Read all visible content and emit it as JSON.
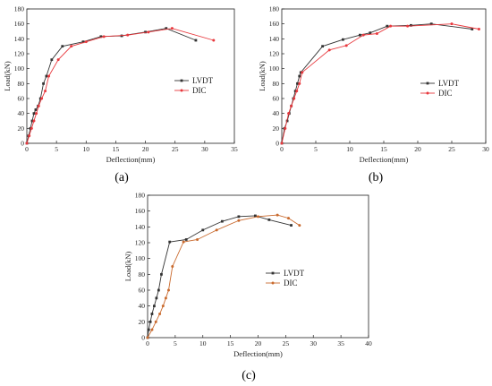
{
  "chart_data": [
    {
      "type": "line",
      "panel_label": "(a)",
      "xlabel": "Deflection(mm)",
      "ylabel": "Load(kN)",
      "xlim": [
        0,
        35
      ],
      "ylim": [
        0,
        180
      ],
      "xticks": [
        0,
        5,
        10,
        15,
        20,
        25,
        30,
        35
      ],
      "yticks": [
        0,
        20,
        40,
        60,
        80,
        100,
        120,
        140,
        160,
        180
      ],
      "legend_position": "right",
      "series": [
        {
          "name": "LVDT",
          "color": "#333333",
          "marker": "square",
          "x": [
            0,
            0.3,
            0.6,
            0.9,
            1.2,
            1.5,
            1.9,
            2.3,
            2.8,
            3.3,
            4.2,
            6.0,
            9.5,
            12.5,
            16.0,
            20.0,
            23.5,
            28.5
          ],
          "y": [
            0,
            10,
            20,
            30,
            40,
            45,
            50,
            60,
            80,
            90,
            112,
            130,
            136,
            143,
            144,
            149,
            154,
            138
          ]
        },
        {
          "name": "DIC",
          "color": "#e8383d",
          "marker": "circle",
          "x": [
            0,
            0.4,
            0.8,
            1.2,
            1.6,
            2.0,
            2.5,
            3.1,
            3.7,
            5.3,
            7.5,
            10.0,
            13.0,
            17.0,
            20.5,
            24.5,
            31.5
          ],
          "y": [
            0,
            10,
            20,
            30,
            40,
            50,
            60,
            70,
            90,
            112,
            130,
            136,
            143,
            145,
            149,
            154,
            138
          ]
        }
      ]
    },
    {
      "type": "line",
      "panel_label": "(b)",
      "xlabel": "Deflection(mm)",
      "ylabel": "Load(kN)",
      "xlim": [
        0,
        30
      ],
      "ylim": [
        0,
        180
      ],
      "xticks": [
        0,
        5,
        10,
        15,
        20,
        25,
        30
      ],
      "yticks": [
        0,
        20,
        40,
        60,
        80,
        100,
        120,
        140,
        160,
        180
      ],
      "legend_position": "center-right",
      "series": [
        {
          "name": "LVDT",
          "color": "#333333",
          "marker": "square",
          "x": [
            0,
            0.4,
            0.8,
            1.1,
            1.4,
            1.7,
            2.0,
            2.3,
            2.6,
            2.8,
            6.0,
            9.0,
            11.5,
            13.0,
            15.5,
            19.0,
            22.0,
            28.0
          ],
          "y": [
            0,
            20,
            30,
            40,
            50,
            60,
            70,
            80,
            90,
            95,
            130,
            139,
            145,
            148,
            157,
            158,
            160,
            153
          ],
          "y_note": ""
        },
        {
          "name": "DIC",
          "color": "#e8383d",
          "marker": "circle",
          "x": [
            0,
            0.5,
            1.0,
            1.4,
            1.8,
            2.2,
            2.6,
            3.0,
            7.0,
            9.5,
            12.0,
            14.0,
            16.0,
            18.5,
            25.0,
            29.0
          ],
          "y": [
            0,
            20,
            40,
            50,
            60,
            70,
            80,
            95,
            125,
            131,
            145,
            147,
            157,
            157,
            160,
            153
          ]
        }
      ]
    },
    {
      "type": "line",
      "panel_label": "(c)",
      "xlabel": "Deflection(mm)",
      "ylabel": "Load(kN)",
      "xlim": [
        0,
        40
      ],
      "ylim": [
        0,
        180
      ],
      "xticks": [
        0,
        5,
        10,
        15,
        20,
        25,
        30,
        35,
        40
      ],
      "yticks": [
        0,
        20,
        40,
        60,
        80,
        100,
        120,
        140,
        160,
        180
      ],
      "legend_position": "center-right",
      "series": [
        {
          "name": "LVDT",
          "color": "#333333",
          "marker": "square",
          "x": [
            0,
            0.2,
            0.5,
            0.8,
            1.2,
            1.6,
            2.0,
            2.5,
            4.0,
            7.0,
            10.0,
            13.5,
            16.5,
            19.5,
            22.0,
            26.0
          ],
          "y": [
            0,
            10,
            20,
            30,
            40,
            50,
            60,
            80,
            121,
            124,
            136,
            147,
            153,
            154,
            149,
            142
          ]
        },
        {
          "name": "DIC",
          "color": "#c96a2e",
          "marker": "circle",
          "x": [
            0,
            0.8,
            1.5,
            2.2,
            2.8,
            3.3,
            3.8,
            4.5,
            6.5,
            9.0,
            12.5,
            16.5,
            20.0,
            23.5,
            25.5,
            27.5
          ],
          "y": [
            0,
            10,
            20,
            30,
            40,
            50,
            60,
            90,
            121,
            124,
            136,
            148,
            153,
            155,
            151,
            142
          ]
        }
      ]
    }
  ]
}
